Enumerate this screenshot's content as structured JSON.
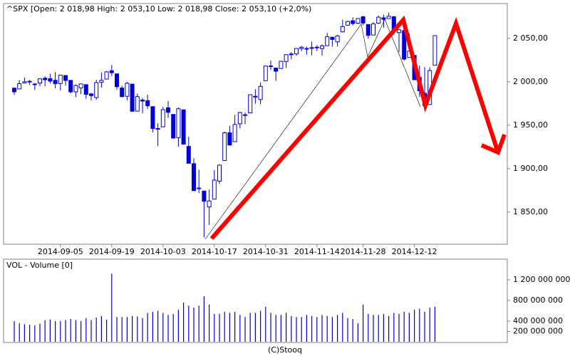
{
  "chart_data": [
    {
      "type": "candlestick",
      "title": "^SPX [Open: 2 018,98 High: 2 053,10 Low: 2 018,98 Close: 2 053,10 (+2,0%)",
      "up_color": "#ffffff",
      "down_color": "#0000dd",
      "outline_color": "#0000dd",
      "x": [
        "2014-08-22",
        "2014-08-25",
        "2014-08-26",
        "2014-08-27",
        "2014-08-28",
        "2014-08-29",
        "2014-09-02",
        "2014-09-03",
        "2014-09-04",
        "2014-09-05",
        "2014-09-08",
        "2014-09-09",
        "2014-09-10",
        "2014-09-11",
        "2014-09-12",
        "2014-09-15",
        "2014-09-16",
        "2014-09-17",
        "2014-09-18",
        "2014-09-19",
        "2014-09-22",
        "2014-09-23",
        "2014-09-24",
        "2014-09-25",
        "2014-09-26",
        "2014-09-29",
        "2014-09-30",
        "2014-10-01",
        "2014-10-02",
        "2014-10-03",
        "2014-10-06",
        "2014-10-07",
        "2014-10-08",
        "2014-10-09",
        "2014-10-10",
        "2014-10-13",
        "2014-10-14",
        "2014-10-15",
        "2014-10-16",
        "2014-10-17",
        "2014-10-20",
        "2014-10-21",
        "2014-10-22",
        "2014-10-23",
        "2014-10-24",
        "2014-10-27",
        "2014-10-28",
        "2014-10-29",
        "2014-10-30",
        "2014-10-31",
        "2014-11-03",
        "2014-11-04",
        "2014-11-05",
        "2014-11-06",
        "2014-11-07",
        "2014-11-10",
        "2014-11-11",
        "2014-11-12",
        "2014-11-13",
        "2014-11-14",
        "2014-11-17",
        "2014-11-18",
        "2014-11-19",
        "2014-11-20",
        "2014-11-21",
        "2014-11-24",
        "2014-11-25",
        "2014-11-26",
        "2014-11-28",
        "2014-12-01",
        "2014-12-02",
        "2014-12-03",
        "2014-12-04",
        "2014-12-05",
        "2014-12-08",
        "2014-12-09",
        "2014-12-10",
        "2014-12-11",
        "2014-12-12",
        "2014-12-15",
        "2014-12-16",
        "2014-12-17",
        "2014-12-18"
      ],
      "open": [
        1992.6,
        1991.7,
        1998.6,
        2000.5,
        1997.4,
        1998.5,
        2004.1,
        2003.6,
        2001.7,
        1998.0,
        2007.2,
        2001.6,
        1988.4,
        1992.9,
        1996.7,
        1986.0,
        1981.9,
        1999.3,
        2003.1,
        2012.7,
        2009.1,
        1992.8,
        1983.3,
        1997.3,
        1966.2,
        1978.9,
        1978.2,
        1971.4,
        1945.8,
        1948.1,
        1970.0,
        1962.4,
        1935.6,
        1967.7,
        1925.6,
        1905.7,
        1877.1,
        1874.2,
        1855.9,
        1864.9,
        1885.6,
        1909.4,
        1941.3,
        1931.0,
        1951.6,
        1962.0,
        1964.1,
        1983.3,
        1979.5,
        2001.2,
        2018.2,
        2015.8,
        2015.3,
        2023.3,
        2032.0,
        2032.0,
        2038.2,
        2037.8,
        2039.2,
        2039.7,
        2038.3,
        2041.5,
        2051.2,
        2045.9,
        2057.5,
        2065.1,
        2070.2,
        2067.4,
        2074.8,
        2065.8,
        2053.8,
        2067.5,
        2073.6,
        2072.8,
        2074.8,
        2056.6,
        2058.9,
        2027.9,
        2030.4,
        2005.0,
        1986.7,
        1973.8,
        2018.98
      ],
      "high": [
        1993.5,
        2001.9,
        2005.0,
        2002.1,
        1998.6,
        2003.4,
        2006.1,
        2009.3,
        2011.2,
        2007.7,
        2007.2,
        2002.1,
        1996.7,
        1997.7,
        1996.7,
        1987.2,
        2002.3,
        2010.7,
        2012.3,
        2019.3,
        2009.1,
        1995.4,
        1999.8,
        1997.3,
        1986.4,
        1981.3,
        1985.2,
        1971.4,
        1952.3,
        1971.2,
        1977.8,
        1962.4,
        1970.4,
        1967.7,
        1936.9,
        1912.1,
        1898.7,
        1874.2,
        1876.0,
        1898.2,
        1905.0,
        1942.5,
        1949.3,
        1961.9,
        1965.3,
        1964.6,
        1985.1,
        1991.4,
        1999.4,
        2018.2,
        2024.5,
        2015.9,
        2023.8,
        2031.6,
        2034.3,
        2038.7,
        2041.3,
        2040.3,
        2046.2,
        2042.2,
        2043.1,
        2056.1,
        2052.1,
        2053.8,
        2071.5,
        2070.2,
        2074.2,
        2073.3,
        2075.8,
        2065.8,
        2068.8,
        2076.3,
        2077.3,
        2079.5,
        2075.8,
        2060.6,
        2058.9,
        2055.5,
        2030.4,
        2018.7,
        2016.9,
        2016.8,
        2053.1
      ],
      "low": [
        1984.8,
        1991.7,
        1998.6,
        1996.2,
        1990.5,
        1994.6,
        1994.9,
        1998.1,
        1992.5,
        1990.1,
        1995.6,
        1986.7,
        1982.3,
        1985.9,
        1980.3,
        1978.5,
        1979.1,
        1993.3,
        2003.1,
        2006.6,
        1991.0,
        1982.8,
        1978.6,
        1965.9,
        1966.2,
        1964.0,
        1968.9,
        1941.7,
        1926.0,
        1948.1,
        1958.4,
        1935.1,
        1925.3,
        1927.6,
        1906.1,
        1874.1,
        1871.8,
        1820.7,
        1835.0,
        1864.9,
        1882.3,
        1909.4,
        1926.8,
        1931.0,
        1946.3,
        1951.4,
        1964.1,
        1974.8,
        1974.0,
        2001.2,
        2013.7,
        2001.0,
        2015.3,
        2015.9,
        2025.9,
        2030.2,
        2035.3,
        2031.3,
        2030.4,
        2035.2,
        2030.2,
        2041.5,
        2040.4,
        2040.5,
        2056.8,
        2065.1,
        2064.8,
        2066.5,
        2065.1,
        2049.6,
        2053.8,
        2066.7,
        2062.3,
        2072.8,
        2054.3,
        2034.2,
        2024.3,
        2027.9,
        2002.3,
        1982.3,
        1972.6,
        1973.8,
        2018.98
      ],
      "close": [
        1988.4,
        1997.9,
        2000.0,
        2000.1,
        1996.7,
        2003.4,
        2002.3,
        2000.7,
        1997.7,
        2007.7,
        2001.5,
        1988.4,
        1995.7,
        1997.5,
        1985.5,
        1984.1,
        1999.0,
        2001.6,
        2011.4,
        2010.4,
        1994.3,
        1982.8,
        1998.3,
        1966.0,
        1982.9,
        1977.8,
        1972.3,
        1946.2,
        1946.2,
        1967.9,
        1964.8,
        1935.1,
        1968.9,
        1928.2,
        1906.1,
        1874.7,
        1877.7,
        1862.5,
        1862.8,
        1886.8,
        1904.0,
        1941.3,
        1927.1,
        1950.8,
        1964.6,
        1961.6,
        1985.1,
        1982.3,
        1994.7,
        2018.1,
        2017.8,
        2012.1,
        2023.6,
        2031.2,
        2031.9,
        2038.3,
        2039.7,
        2038.3,
        2039.3,
        2039.8,
        2041.3,
        2051.8,
        2048.7,
        2052.8,
        2063.5,
        2069.4,
        2067.0,
        2072.8,
        2067.6,
        2053.4,
        2066.6,
        2074.3,
        2071.9,
        2075.4,
        2060.3,
        2059.8,
        2026.1,
        2035.3,
        2002.3,
        1989.6,
        1972.7,
        2012.9,
        2053.1
      ],
      "ylim": [
        1813,
        2090
      ],
      "yticks": [
        {
          "value": 1850,
          "label": "1 850,00"
        },
        {
          "value": 1900,
          "label": "1 900,00"
        },
        {
          "value": 1950,
          "label": "1 950,00"
        },
        {
          "value": 2000,
          "label": "2 000,00"
        },
        {
          "value": 2050,
          "label": "2 050,00"
        }
      ],
      "xticks": [
        "2014-09-05",
        "2014-09-19",
        "2014-10-03",
        "2014-10-17",
        "2014-10-31",
        "2014-11-14",
        "2014-11-28",
        "2014-12-12"
      ]
    },
    {
      "type": "volume",
      "title": "VOL - Volume [0]",
      "color": "#0000dd",
      "values": [
        400000000,
        360000000,
        340000000,
        330000000,
        320000000,
        350000000,
        420000000,
        430000000,
        400000000,
        400000000,
        420000000,
        440000000,
        420000000,
        400000000,
        460000000,
        420000000,
        470000000,
        500000000,
        430000000,
        1320000000,
        480000000,
        480000000,
        480000000,
        500000000,
        490000000,
        460000000,
        560000000,
        580000000,
        600000000,
        560000000,
        520000000,
        540000000,
        620000000,
        760000000,
        700000000,
        660000000,
        700000000,
        880000000,
        720000000,
        540000000,
        540000000,
        580000000,
        560000000,
        580000000,
        520000000,
        480000000,
        560000000,
        560000000,
        600000000,
        680000000,
        560000000,
        520000000,
        520000000,
        560000000,
        500000000,
        480000000,
        480000000,
        520000000,
        500000000,
        480000000,
        520000000,
        500000000,
        480000000,
        520000000,
        560000000,
        460000000,
        440000000,
        360000000,
        720000000,
        540000000,
        520000000,
        520000000,
        540000000,
        500000000,
        560000000,
        540000000,
        580000000,
        560000000,
        620000000,
        640000000,
        580000000,
        660000000,
        680000000
      ],
      "ylim": [
        0,
        1586000000
      ],
      "yticks": [
        {
          "value": 200000000,
          "label": "200 000 000"
        },
        {
          "value": 400000000,
          "label": "400 000 000"
        },
        {
          "value": 800000000,
          "label": "800 000 000"
        },
        {
          "value": 1200000000,
          "label": "1 200 000 000"
        }
      ]
    }
  ],
  "footer": "(C)Stooq"
}
